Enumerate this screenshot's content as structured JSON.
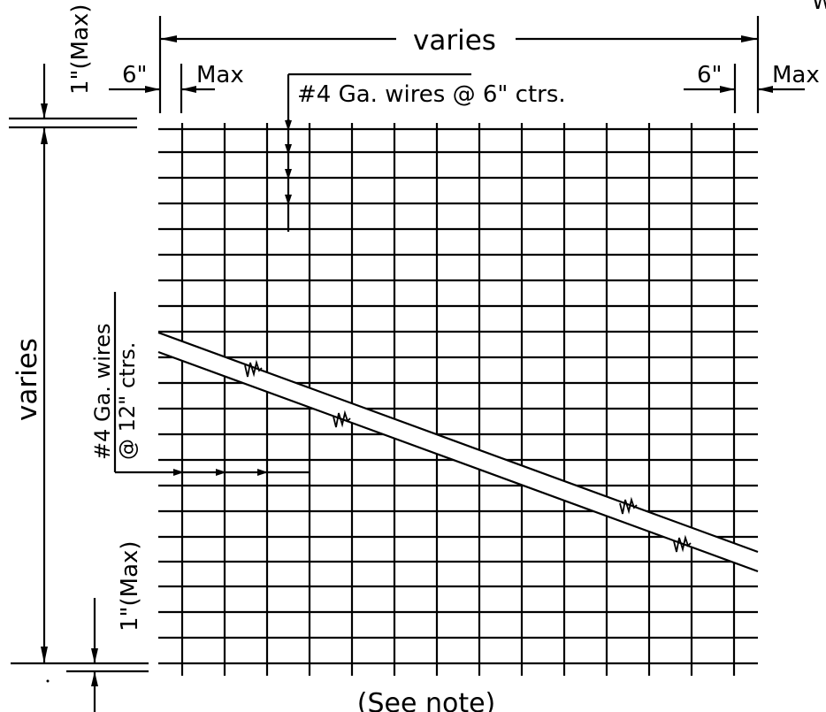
{
  "labels": {
    "corner_mark": "W",
    "top_dimension": "varies",
    "top_left_offset": "6\"",
    "top_left_max": "Max",
    "top_right_offset": "6\"",
    "top_right_max": "Max",
    "horizontal_wire_callout": "#4 Ga. wires @ 6\" ctrs.",
    "top_vertical_max": "1\"(Max)",
    "left_dimension": "varies",
    "vertical_wire_callout_line1": "#4 Ga. wires",
    "vertical_wire_callout_line2": "@ 12\" ctrs.",
    "bottom_vertical_max": "1\"(Max)",
    "footnote": "(See note)"
  },
  "colors": {
    "line": "#000000",
    "background": "#ffffff"
  }
}
